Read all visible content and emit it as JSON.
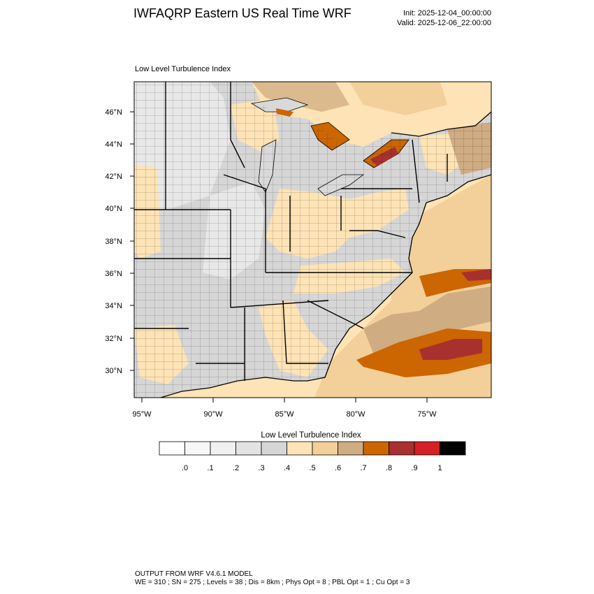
{
  "header": {
    "title": "IWFAQRP Eastern US Real Time WRF",
    "init": "Init: 2025-12-04_00:00:00",
    "valid": "Valid: 2025-12-06_22:00:00"
  },
  "map": {
    "subtitle": "Low Level Turbulence Index",
    "lat_labels": [
      "46°N",
      "44°N",
      "42°N",
      "40°N",
      "38°N",
      "36°N",
      "34°N",
      "32°N",
      "30°N"
    ],
    "lon_labels": [
      "95°W",
      "90°W",
      "85°W",
      "80°W",
      "75°W"
    ],
    "colors": {
      "land_light": "#e6e6e6",
      "land_mid": "#d6d6d6",
      "tan_light": "#fde3b5",
      "tan": "#f3cf99",
      "brown": "#cfac82",
      "orange": "#cc6600",
      "red_brown": "#a8302f",
      "red": "#d42026",
      "water_lake": "#d9d9d9"
    }
  },
  "colorbar": {
    "title": "Low Level Turbulence Index",
    "tick_labels": [
      ".0",
      ".1",
      ".2",
      ".3",
      ".4",
      ".5",
      ".6",
      ".7",
      ".8",
      ".9",
      "1"
    ],
    "colors": [
      "#ffffff",
      "#f7f7f7",
      "#f0f0f0",
      "#e3e3e3",
      "#d6d6d6",
      "#fde3b5",
      "#f3cf99",
      "#cfac82",
      "#cc6600",
      "#a8302f",
      "#d42026",
      "#000000"
    ]
  },
  "footer": {
    "line1": "OUTPUT FROM WRF V4.6.1 MODEL",
    "line2": "WE = 310 ; SN = 275 ; Levels = 38 ; Dis = 8km ; Phys Opt = 8 ; PBL Opt = 1 ; Cu Opt = 3"
  }
}
